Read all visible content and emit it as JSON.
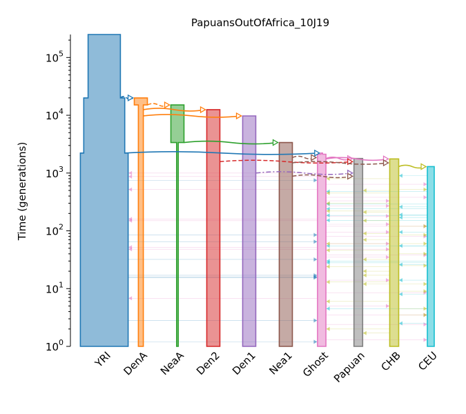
{
  "chart_data": {
    "type": "demography",
    "title": "PapuansOutOfAfrica_10J19",
    "ylabel": "Time (generations)",
    "yscale": "log",
    "ylim": [
      1,
      250000
    ],
    "yticks": [
      {
        "value": 1,
        "base": "10",
        "exp": "0"
      },
      {
        "value": 10,
        "base": "10",
        "exp": "1"
      },
      {
        "value": 100,
        "base": "10",
        "exp": "2"
      },
      {
        "value": 1000,
        "base": "10",
        "exp": "3"
      },
      {
        "value": 10000,
        "base": "10",
        "exp": "4"
      },
      {
        "value": 100000,
        "base": "10",
        "exp": "5"
      }
    ],
    "categories": [
      "YRI",
      "DenA",
      "NeaA",
      "Den2",
      "Den1",
      "Nea1",
      "Ghost",
      "Papuan",
      "CHB",
      "CEU"
    ],
    "colors": {
      "YRI": "#1f77b4",
      "DenA": "#ff7f0e",
      "NeaA": "#2ca02c",
      "Den2": "#d62728",
      "Den1": "#9467bd",
      "Nea1": "#8c564b",
      "Ghost": "#e377c2",
      "Papuan": "#7f7f7f",
      "CHB": "#bcbd22",
      "CEU": "#17becf"
    },
    "populations": [
      {
        "name": "YRI",
        "start": 250000,
        "end": 1,
        "epochs": [
          {
            "from": 250000,
            "to": 20000,
            "size": 32671
          },
          {
            "from": 20000,
            "to": 2218,
            "size": 41563
          },
          {
            "from": 2218,
            "to": 1,
            "size": 48433
          }
        ]
      },
      {
        "name": "DenA",
        "start": 20000,
        "end": 1,
        "epochs": [
          {
            "from": 20000,
            "to": 15090,
            "size": 13249
          },
          {
            "from": 15090,
            "to": 9750,
            "size": 5000
          },
          {
            "from": 9750,
            "to": 1,
            "size": 5083
          }
        ]
      },
      {
        "name": "NeaA",
        "start": 15090,
        "end": 1,
        "epochs": [
          {
            "from": 15090,
            "to": 3375,
            "size": 13249
          },
          {
            "from": 3375,
            "to": 1,
            "size": 826
          }
        ]
      },
      {
        "name": "Den2",
        "start": 12500,
        "end": 1,
        "epochs": [
          {
            "from": 12500,
            "to": 1,
            "size": 13249
          }
        ]
      },
      {
        "name": "Den1",
        "start": 9750,
        "end": 1,
        "epochs": [
          {
            "from": 9750,
            "to": 1,
            "size": 13249
          }
        ]
      },
      {
        "name": "Nea1",
        "start": 3375,
        "end": 1,
        "epochs": [
          {
            "from": 3375,
            "to": 1,
            "size": 13249
          }
        ]
      },
      {
        "name": "Ghost",
        "start": 2218,
        "end": 1,
        "epochs": [
          {
            "from": 2218,
            "to": 2119,
            "size": 1394
          },
          {
            "from": 2119,
            "to": 1,
            "size": 8516
          }
        ]
      },
      {
        "name": "Papuan",
        "start": 1784,
        "end": 1,
        "epochs": [
          {
            "from": 1784,
            "to": 1,
            "size": 8834
          }
        ]
      },
      {
        "name": "CHB",
        "start": 1758,
        "end": 1,
        "epochs": [
          {
            "from": 1758,
            "to": 1293,
            "size": 9025
          },
          {
            "from": 1293,
            "to": 1,
            "size": 9025
          }
        ]
      },
      {
        "name": "CEU",
        "start": 1293,
        "end": 1,
        "epochs": [
          {
            "from": 1293,
            "to": 1,
            "size": 6962
          }
        ]
      }
    ],
    "splits": [
      {
        "from": "YRI",
        "to": "DenA",
        "time": 20000,
        "style": "dashed"
      },
      {
        "from": "DenA",
        "to": "NeaA",
        "time": 15090,
        "style": "dashed"
      },
      {
        "from": "DenA",
        "to": "Den2",
        "time": 12500,
        "style": "solid"
      },
      {
        "from": "DenA",
        "to": "Den1",
        "time": 9750,
        "style": "solid"
      },
      {
        "from": "NeaA",
        "to": "Nea1",
        "time": 3375,
        "style": "solid"
      },
      {
        "from": "YRI",
        "to": "Ghost",
        "time": 2218,
        "style": "solid"
      },
      {
        "from": "Ghost",
        "to": "Papuan",
        "time": 1784,
        "style": "solid"
      },
      {
        "from": "Ghost",
        "to": "CHB",
        "time": 1758,
        "style": "solid"
      },
      {
        "from": "CHB",
        "to": "CEU",
        "time": 1293,
        "style": "solid"
      }
    ],
    "pulses": [
      {
        "from": "Den2",
        "to": "Papuan",
        "time": 1575,
        "style": "dashed"
      },
      {
        "from": "Nea1",
        "to": "Ghost",
        "time": 1853,
        "style": "dashed"
      },
      {
        "from": "Nea1",
        "to": "CHB",
        "time": 1500,
        "style": "dashed"
      },
      {
        "from": "Den1",
        "to": "Papuan",
        "time": 1000,
        "style": "dashdot"
      },
      {
        "from": "Nea1",
        "to": "Papuan",
        "time": 880,
        "style": "dashed"
      }
    ],
    "migrations": [
      {
        "from": "Ghost",
        "to": "YRI",
        "times": [
          1000,
          870,
          520,
          160,
          150,
          52,
          48,
          6.8
        ]
      },
      {
        "from": "YRI",
        "to": "Ghost",
        "times": [
          750,
          85,
          65,
          32,
          17,
          16,
          15.5,
          2.8,
          1.2
        ]
      },
      {
        "from": "CEU",
        "to": "Ghost",
        "times": [
          480,
          290,
          240,
          185,
          152,
          55,
          30,
          28,
          4.5
        ]
      },
      {
        "from": "Ghost",
        "to": "CEU",
        "times": [
          640,
          380,
          120,
          80,
          38,
          8.5,
          3.5,
          2.4,
          1.3
        ]
      },
      {
        "from": "CHB",
        "to": "CEU",
        "times": [
          520,
          120,
          85,
          60,
          40,
          25,
          12,
          9,
          4.5,
          3.5
        ]
      },
      {
        "from": "CEU",
        "to": "CHB",
        "times": [
          900,
          260,
          190,
          170,
          95,
          55,
          26,
          14,
          8,
          2.5
        ]
      },
      {
        "from": "Ghost",
        "to": "CHB",
        "times": [
          330,
          270,
          180,
          130,
          95,
          60,
          48,
          35,
          14,
          5
        ]
      },
      {
        "from": "CHB",
        "to": "Ghost",
        "times": [
          800,
          450,
          300,
          220,
          60,
          46,
          24,
          13,
          6,
          2
        ]
      },
      {
        "from": "CHB",
        "to": "Papuan",
        "times": [
          500,
          210,
          150,
          90,
          70,
          32,
          20,
          17,
          12,
          1.7
        ]
      }
    ]
  }
}
